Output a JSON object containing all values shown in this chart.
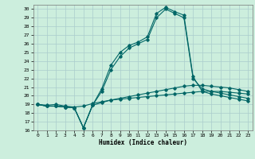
{
  "title": "",
  "xlabel": "Humidex (Indice chaleur)",
  "ylabel": "",
  "bg_color": "#cceedd",
  "grid_color": "#aacccc",
  "line_color": "#006666",
  "xlim": [
    -0.5,
    23.5
  ],
  "ylim": [
    16,
    30.5
  ],
  "yticks": [
    16,
    17,
    18,
    19,
    20,
    21,
    22,
    23,
    24,
    25,
    26,
    27,
    28,
    29,
    30
  ],
  "xticks": [
    0,
    1,
    2,
    3,
    4,
    5,
    6,
    7,
    8,
    9,
    10,
    11,
    12,
    13,
    14,
    15,
    16,
    17,
    18,
    19,
    20,
    21,
    22,
    23
  ],
  "series": [
    [
      19.0,
      18.9,
      19.0,
      18.8,
      18.7,
      18.8,
      19.1,
      19.3,
      19.5,
      19.6,
      19.7,
      19.8,
      19.9,
      20.0,
      20.1,
      20.2,
      20.3,
      20.4,
      20.5,
      20.5,
      20.5,
      20.4,
      20.3,
      20.2
    ],
    [
      19.0,
      18.8,
      18.8,
      18.7,
      18.6,
      16.3,
      18.9,
      19.2,
      19.5,
      19.7,
      19.9,
      20.1,
      20.3,
      20.5,
      20.7,
      20.9,
      21.1,
      21.2,
      21.2,
      21.1,
      21.0,
      20.9,
      20.7,
      20.5
    ],
    [
      19.0,
      18.8,
      18.8,
      18.7,
      18.6,
      16.3,
      18.9,
      20.5,
      23.0,
      24.5,
      25.5,
      26.0,
      26.5,
      29.0,
      30.0,
      29.5,
      29.0,
      22.0,
      20.8,
      20.5,
      20.3,
      20.1,
      19.9,
      19.7
    ],
    [
      19.0,
      18.8,
      18.8,
      18.7,
      18.6,
      16.3,
      18.9,
      20.8,
      23.5,
      25.0,
      25.8,
      26.2,
      26.8,
      29.5,
      30.2,
      29.7,
      29.3,
      22.2,
      20.5,
      20.2,
      20.0,
      19.8,
      19.6,
      19.4
    ]
  ]
}
